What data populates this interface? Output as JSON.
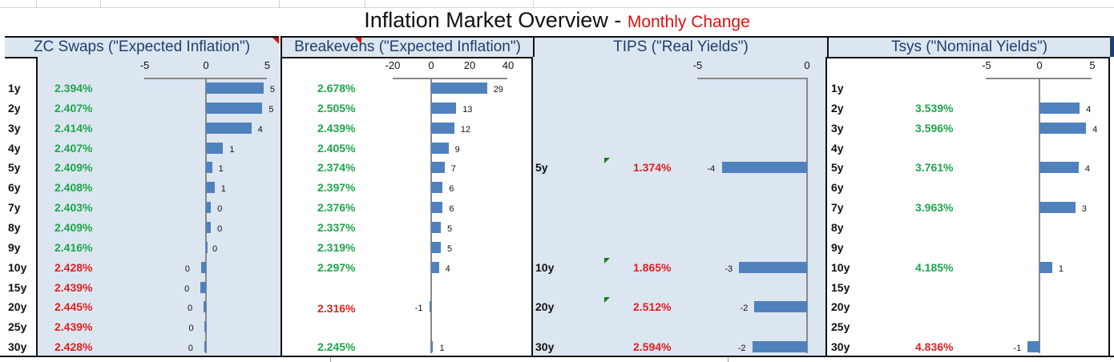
{
  "title": {
    "main": "Inflation Market Overview - ",
    "sub": "Monthly Change"
  },
  "colors": {
    "up": "#1fa64a",
    "down": "#e02020",
    "bar": "#4f81bd",
    "panel_bg": "#dce6f1"
  },
  "tenors": [
    "1y",
    "2y",
    "3y",
    "4y",
    "5y",
    "6y",
    "7y",
    "8y",
    "9y",
    "10y",
    "15y",
    "20y",
    "25y",
    "30y"
  ],
  "chart_data": [
    {
      "type": "bar",
      "orientation": "horizontal",
      "title": "ZC Swaps (\"Expected Inflation\")",
      "xlim": [
        -5,
        5
      ],
      "ticks": [
        "-5",
        "0",
        "5"
      ],
      "levels": [
        "2.394%",
        "2.407%",
        "2.414%",
        "2.407%",
        "2.409%",
        "2.408%",
        "2.403%",
        "2.409%",
        "2.416%",
        "2.428%",
        "2.439%",
        "2.445%",
        "2.439%",
        "2.428%"
      ],
      "level_color": [
        "up",
        "up",
        "up",
        "up",
        "up",
        "up",
        "up",
        "up",
        "up",
        "down",
        "down",
        "down",
        "down",
        "down"
      ],
      "values": [
        4.7,
        4.6,
        3.7,
        1.4,
        0.5,
        0.7,
        0.4,
        0.4,
        0,
        -0.4,
        -0.45,
        -0.2,
        -0.1,
        -0.15
      ],
      "labels": [
        "5",
        "5",
        "4",
        "1",
        "1",
        "1",
        "0",
        "0",
        "0",
        "0",
        "0",
        "0",
        "0",
        "0"
      ]
    },
    {
      "type": "bar",
      "orientation": "horizontal",
      "title": "Breakevens (\"Expected Inflation\")",
      "xlim": [
        -20,
        40
      ],
      "ticks": [
        "-20",
        "0",
        "20",
        "40"
      ],
      "levels": [
        "2.678%",
        "2.505%",
        "2.439%",
        "2.405%",
        "2.374%",
        "2.397%",
        "2.376%",
        "2.337%",
        "2.319%",
        "2.297%",
        null,
        "2.316%",
        null,
        "2.245%"
      ],
      "level_color": [
        "up",
        "up",
        "up",
        "up",
        "up",
        "up",
        "up",
        "up",
        "up",
        "up",
        null,
        "down",
        null,
        "up"
      ],
      "values": [
        29,
        13,
        12,
        9,
        7,
        6,
        6,
        5,
        5,
        4,
        null,
        -1,
        null,
        1
      ],
      "labels": [
        "29",
        "13",
        "12",
        "9",
        "7",
        "6",
        "6",
        "5",
        "5",
        "4",
        null,
        "-1",
        null,
        "1"
      ]
    },
    {
      "type": "bar",
      "orientation": "horizontal",
      "title": "TIPS (\"Real Yields\")",
      "xlim": [
        -5,
        0
      ],
      "ticks": [
        "-5",
        "0"
      ],
      "levels": [
        null,
        null,
        null,
        null,
        "1.374%",
        null,
        null,
        null,
        null,
        "1.865%",
        null,
        "2.512%",
        null,
        "2.594%"
      ],
      "level_color": [
        null,
        null,
        null,
        null,
        "down",
        null,
        null,
        null,
        null,
        "down",
        null,
        "down",
        null,
        "down"
      ],
      "values": [
        null,
        null,
        null,
        null,
        -3.9,
        null,
        null,
        null,
        null,
        -3.1,
        null,
        -2.4,
        null,
        -2.5
      ],
      "labels": [
        null,
        null,
        null,
        null,
        "-4",
        null,
        null,
        null,
        null,
        "-3",
        null,
        "-2",
        null,
        "-2"
      ]
    },
    {
      "type": "bar",
      "orientation": "horizontal",
      "title": "Tsys (\"Nominal Yields\")",
      "xlim": [
        -5,
        5
      ],
      "ticks": [
        "-5",
        "0",
        "5"
      ],
      "levels": [
        null,
        "3.539%",
        "3.596%",
        null,
        "3.761%",
        null,
        "3.963%",
        null,
        null,
        "4.185%",
        null,
        null,
        null,
        "4.836%"
      ],
      "level_color": [
        null,
        "up",
        "up",
        null,
        "up",
        null,
        "up",
        null,
        null,
        "up",
        null,
        null,
        null,
        "down"
      ],
      "values": [
        null,
        3.8,
        4.4,
        null,
        3.7,
        null,
        3.4,
        null,
        null,
        1.2,
        null,
        null,
        null,
        -1.1
      ],
      "labels": [
        null,
        "4",
        "4",
        null,
        "4",
        null,
        "3",
        null,
        null,
        "1",
        null,
        null,
        null,
        "-1"
      ]
    }
  ]
}
